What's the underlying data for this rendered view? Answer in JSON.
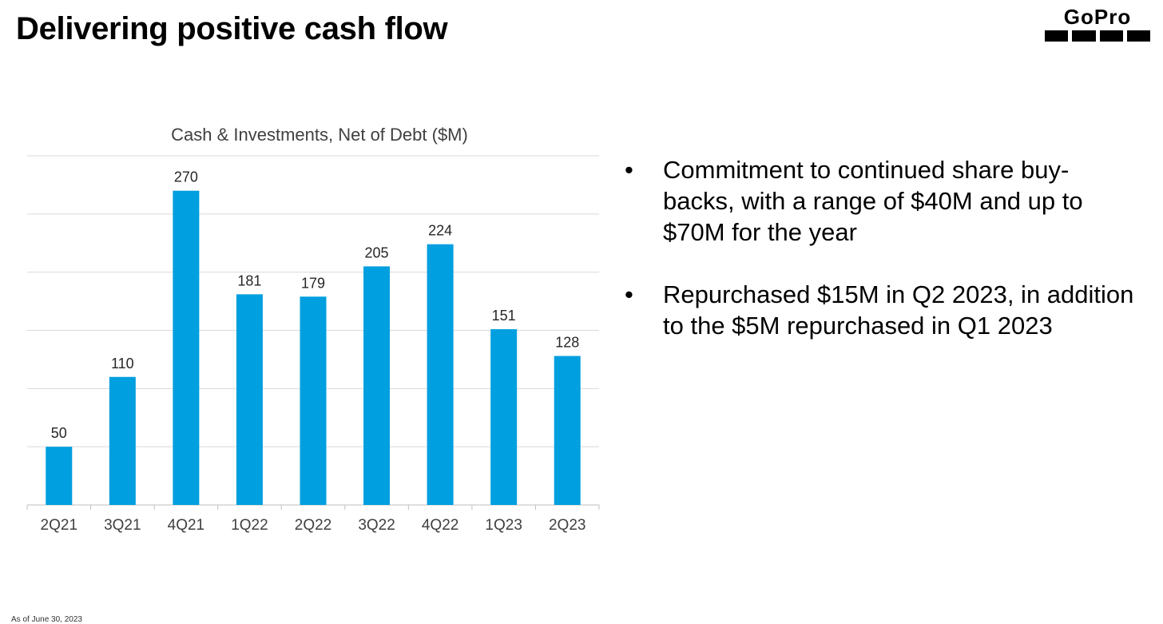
{
  "slide": {
    "title": "Delivering positive cash flow",
    "footnote": "As of June 30, 2023",
    "logo_text": "GoPro"
  },
  "bullets": [
    "Commitment to continued share buy-backs, with a range of $40M and up to $70M for the year",
    "Repurchased $15M in Q2 2023, in addition to the $5M repurchased in Q1 2023"
  ],
  "chart_data": {
    "type": "bar",
    "title": "Cash & Investments, Net of Debt ($M)",
    "categories": [
      "2Q21",
      "3Q21",
      "4Q21",
      "1Q22",
      "2Q22",
      "3Q22",
      "4Q22",
      "1Q23",
      "2Q23"
    ],
    "values": [
      50,
      110,
      270,
      181,
      179,
      205,
      224,
      151,
      128
    ],
    "xlabel": "",
    "ylabel": "",
    "ylim": [
      0,
      300
    ],
    "grid": true,
    "bar_color": "#009FDF",
    "gridline_color": "#D9D9D9"
  }
}
